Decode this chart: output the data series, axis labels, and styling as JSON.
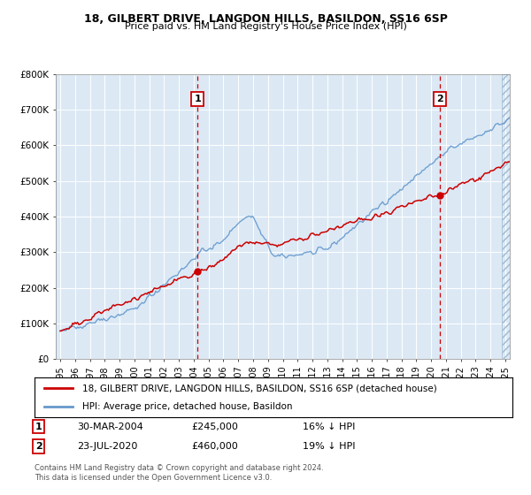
{
  "title1": "18, GILBERT DRIVE, LANGDON HILLS, BASILDON, SS16 6SP",
  "title2": "Price paid vs. HM Land Registry's House Price Index (HPI)",
  "legend1": "18, GILBERT DRIVE, LANGDON HILLS, BASILDON, SS16 6SP (detached house)",
  "legend2": "HPI: Average price, detached house, Basildon",
  "annotation1_date": "30-MAR-2004",
  "annotation1_price": "£245,000",
  "annotation1_hpi": "16% ↓ HPI",
  "annotation1_year": 2004.25,
  "annotation1_value": 245000,
  "annotation2_date": "23-JUL-2020",
  "annotation2_price": "£460,000",
  "annotation2_hpi": "19% ↓ HPI",
  "annotation2_year": 2020.58,
  "annotation2_value": 460000,
  "footer1": "Contains HM Land Registry data © Crown copyright and database right 2024.",
  "footer2": "This data is licensed under the Open Government Licence v3.0.",
  "hpi_color": "#6699cc",
  "property_color": "#cc0000",
  "bg_color": "#dce9f5",
  "ylim": [
    0,
    800000
  ],
  "yticks": [
    0,
    100000,
    200000,
    300000,
    400000,
    500000,
    600000,
    700000,
    800000
  ],
  "ytick_labels": [
    "£0",
    "£100K",
    "£200K",
    "£300K",
    "£400K",
    "£500K",
    "£600K",
    "£700K",
    "£800K"
  ],
  "xlim_start": 1994.7,
  "xlim_end": 2025.3,
  "hatch_start": 2024.75
}
